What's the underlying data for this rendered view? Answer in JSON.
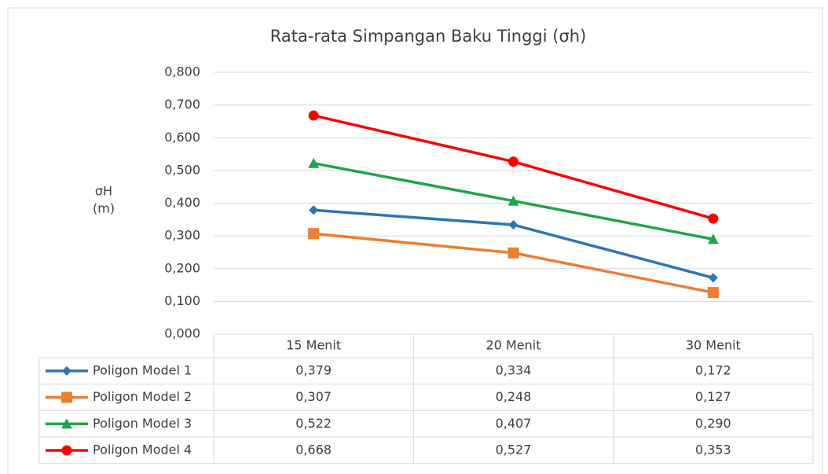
{
  "chart_data": {
    "type": "line",
    "title": "Rata-rata Simpangan Baku Tinggi (σh)",
    "ylabel": [
      "σH",
      "(m)"
    ],
    "categories": [
      "15 Menit",
      "20 Menit",
      "30 Menit"
    ],
    "series": [
      {
        "name": "Poligon Model 1",
        "color": "#2e75b6",
        "marker": "diamond",
        "values": [
          0.379,
          0.334,
          0.172
        ],
        "value_labels": [
          "0,379",
          "0,334",
          "0,172"
        ]
      },
      {
        "name": "Poligon Model 2",
        "color": "#ed7d31",
        "marker": "square",
        "values": [
          0.307,
          0.248,
          0.127
        ],
        "value_labels": [
          "0,307",
          "0,248",
          "0,127"
        ]
      },
      {
        "name": "Poligon Model 3",
        "color": "#1fa64a",
        "marker": "triangle",
        "values": [
          0.522,
          0.407,
          0.29
        ],
        "value_labels": [
          "0,522",
          "0,407",
          "0,290"
        ]
      },
      {
        "name": "Poligon Model 4",
        "color": "#ff0000",
        "marker": "circle",
        "values": [
          0.668,
          0.527,
          0.353
        ],
        "value_labels": [
          "0,668",
          "0,527",
          "0,353"
        ]
      }
    ],
    "ylim": [
      0,
      0.8
    ],
    "yticks": [
      {
        "value": 0,
        "label": "0,000"
      },
      {
        "value": 0.1,
        "label": "0,100"
      },
      {
        "value": 0.2,
        "label": "0,200"
      },
      {
        "value": 0.3,
        "label": "0,300"
      },
      {
        "value": 0.4,
        "label": "0,400"
      },
      {
        "value": 0.5,
        "label": "0,500"
      },
      {
        "value": 0.6,
        "label": "0,600"
      },
      {
        "value": 0.7,
        "label": "0,700"
      },
      {
        "value": 0.8,
        "label": "0,800"
      }
    ],
    "grid": true
  }
}
